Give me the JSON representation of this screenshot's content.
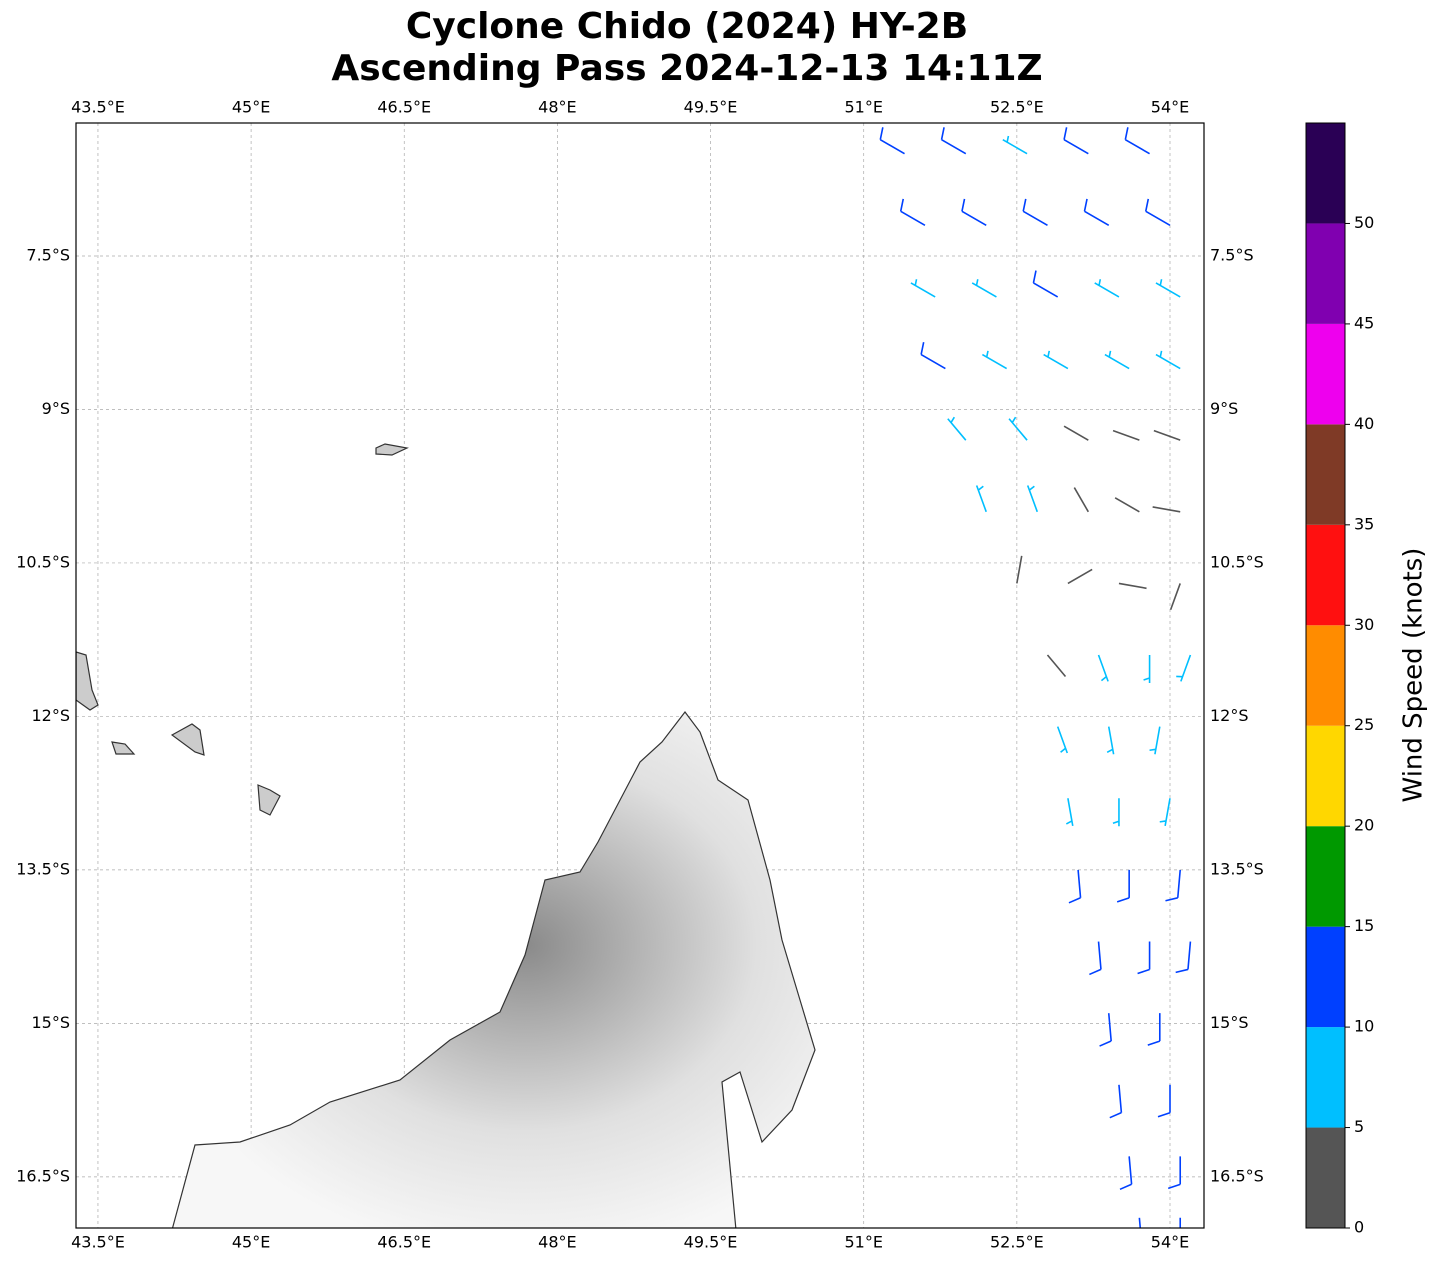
{
  "map": {
    "title": "Cyclone Chido (2024) HY-2B",
    "subtitle": "Ascending Pass 2024-12-13 14:11Z",
    "xlim": [
      43.285,
      54.333
    ],
    "ylim": [
      -17.0,
      -6.2
    ],
    "xticks": [
      {
        "value": 43.5,
        "label": "43.5°E"
      },
      {
        "value": 45,
        "label": "45°E"
      },
      {
        "value": 46.5,
        "label": "46.5°E"
      },
      {
        "value": 48,
        "label": "48°E"
      },
      {
        "value": 49.5,
        "label": "49.5°E"
      },
      {
        "value": 51,
        "label": "51°E"
      },
      {
        "value": 52.5,
        "label": "52.5°E"
      },
      {
        "value": 54,
        "label": "54°E"
      }
    ],
    "yticks": [
      {
        "value": -7.5,
        "label": "7.5°S"
      },
      {
        "value": -9,
        "label": "9°S"
      },
      {
        "value": -10.5,
        "label": "10.5°S"
      },
      {
        "value": -12,
        "label": "12°S"
      },
      {
        "value": -13.5,
        "label": "13.5°S"
      },
      {
        "value": -15,
        "label": "15°S"
      },
      {
        "value": -16.5,
        "label": "16.5°S"
      }
    ],
    "grid": true,
    "colorbar": {
      "label": "Wind Speed (knots)",
      "lim": [
        0,
        55
      ],
      "bounds": [
        0,
        5,
        10,
        15,
        20,
        25,
        30,
        35,
        40,
        45,
        50,
        55
      ],
      "colors": [
        "#555555",
        "#00bfff",
        "#0040ff",
        "#009900",
        "#ffd700",
        "#ff8c00",
        "#ff1010",
        "#7f3a26",
        "#ee00ee",
        "#8000b0",
        "#2a0055"
      ],
      "ticks": [
        0,
        5,
        10,
        15,
        20,
        25,
        30,
        35,
        40,
        45,
        50
      ]
    },
    "barbs": [
      [
        51.4,
        -6.5,
        11,
        300
      ],
      [
        52.0,
        -6.5,
        11,
        300
      ],
      [
        52.6,
        -6.5,
        7,
        300
      ],
      [
        53.2,
        -6.5,
        11,
        300
      ],
      [
        53.8,
        -6.5,
        11,
        300
      ],
      [
        51.6,
        -7.2,
        11,
        300
      ],
      [
        52.2,
        -7.2,
        11,
        300
      ],
      [
        52.8,
        -7.2,
        11,
        300
      ],
      [
        53.4,
        -7.2,
        11,
        300
      ],
      [
        54.0,
        -7.2,
        11,
        300
      ],
      [
        51.7,
        -7.9,
        7,
        300
      ],
      [
        52.3,
        -7.9,
        7,
        300
      ],
      [
        52.9,
        -7.9,
        11,
        300
      ],
      [
        53.5,
        -7.9,
        7,
        300
      ],
      [
        54.1,
        -7.9,
        7,
        300
      ],
      [
        51.8,
        -8.6,
        11,
        300
      ],
      [
        52.4,
        -8.6,
        7,
        300
      ],
      [
        53.0,
        -8.6,
        7,
        300
      ],
      [
        53.6,
        -8.6,
        7,
        300
      ],
      [
        54.1,
        -8.6,
        7,
        300
      ],
      [
        52.0,
        -9.3,
        7,
        320
      ],
      [
        52.6,
        -9.3,
        7,
        320
      ],
      [
        53.2,
        -9.3,
        3,
        300
      ],
      [
        53.7,
        -9.3,
        3,
        290
      ],
      [
        54.1,
        -9.3,
        3,
        290
      ],
      [
        52.2,
        -10.0,
        7,
        340
      ],
      [
        52.7,
        -10.0,
        7,
        340
      ],
      [
        53.2,
        -10.0,
        3,
        330
      ],
      [
        53.7,
        -10.0,
        3,
        300
      ],
      [
        54.1,
        -10.0,
        3,
        280
      ],
      [
        52.5,
        -10.7,
        3,
        10
      ],
      [
        53.0,
        -10.7,
        3,
        60
      ],
      [
        53.5,
        -10.7,
        3,
        100
      ],
      [
        54.1,
        -10.7,
        3,
        200
      ],
      [
        52.8,
        -11.4,
        3,
        140
      ],
      [
        53.3,
        -11.4,
        7,
        160
      ],
      [
        53.8,
        -11.4,
        7,
        180
      ],
      [
        54.2,
        -11.4,
        7,
        200
      ],
      [
        52.9,
        -12.1,
        7,
        160
      ],
      [
        53.4,
        -12.1,
        7,
        170
      ],
      [
        53.9,
        -12.1,
        7,
        190
      ],
      [
        53.0,
        -12.8,
        7,
        170
      ],
      [
        53.5,
        -12.8,
        7,
        180
      ],
      [
        54.0,
        -12.8,
        7,
        190
      ],
      [
        53.1,
        -13.5,
        11,
        175
      ],
      [
        53.6,
        -13.5,
        11,
        180
      ],
      [
        54.1,
        -13.5,
        11,
        185
      ],
      [
        53.3,
        -14.2,
        11,
        175
      ],
      [
        53.8,
        -14.2,
        11,
        180
      ],
      [
        54.2,
        -14.2,
        11,
        185
      ],
      [
        53.4,
        -14.9,
        11,
        175
      ],
      [
        53.9,
        -14.9,
        11,
        180
      ],
      [
        53.5,
        -15.6,
        11,
        175
      ],
      [
        54.0,
        -15.6,
        11,
        180
      ],
      [
        53.6,
        -16.3,
        11,
        175
      ],
      [
        54.1,
        -16.3,
        11,
        180
      ],
      [
        53.7,
        -16.9,
        11,
        175
      ],
      [
        54.1,
        -16.9,
        11,
        180
      ]
    ]
  }
}
